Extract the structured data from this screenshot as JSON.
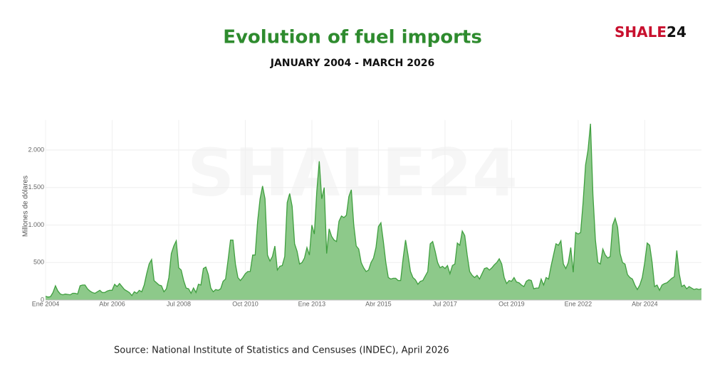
{
  "brand": [
    "SHALE",
    "24"
  ],
  "chart_data": {
    "type": "area",
    "title": "Evolution of fuel imports",
    "subtitle": "JANUARY 2004 - MARCH 2026",
    "watermark": "SHALE24",
    "y_label": "Millones de dólares",
    "source": "Source: National Institute of Statistics and Censuses (INDEC), April 2026",
    "color": "#3f9f3f",
    "fill": "#8dc98a",
    "grid": true,
    "ylim": [
      0,
      2400
    ],
    "yticks": [
      0,
      500,
      {
        "value": 1000,
        "label": "1.000"
      },
      {
        "value": 1500,
        "label": "1.500"
      },
      {
        "value": 2000,
        "label": "2.000"
      }
    ],
    "categories": [
      "Ene 2004",
      null,
      null,
      null,
      null,
      null,
      null,
      null,
      null,
      null,
      null,
      null,
      null,
      null,
      null,
      null,
      null,
      null,
      null,
      null,
      null,
      null,
      null,
      null,
      null,
      null,
      null,
      "Abr 2006",
      null,
      null,
      null,
      null,
      null,
      null,
      null,
      null,
      null,
      null,
      null,
      null,
      null,
      null,
      null,
      null,
      null,
      null,
      null,
      null,
      null,
      null,
      null,
      null,
      null,
      null,
      "Jul 2008",
      null,
      null,
      null,
      null,
      null,
      null,
      null,
      null,
      null,
      null,
      null,
      null,
      null,
      null,
      null,
      null,
      null,
      null,
      null,
      null,
      null,
      null,
      null,
      null,
      null,
      null,
      "Oct 2010",
      null,
      null,
      null,
      null,
      null,
      null,
      null,
      null,
      null,
      null,
      null,
      null,
      null,
      null,
      null,
      null,
      null,
      null,
      null,
      null,
      null,
      null,
      null,
      null,
      null,
      null,
      "Ene 2013",
      null,
      null,
      null,
      null,
      null,
      null,
      null,
      null,
      null,
      null,
      null,
      null,
      null,
      null,
      null,
      null,
      null,
      null,
      null,
      null,
      null,
      null,
      null,
      null,
      null,
      null,
      "Abr 2015",
      null,
      null,
      null,
      null,
      null,
      null,
      null,
      null,
      null,
      null,
      null,
      null,
      null,
      null,
      null,
      null,
      null,
      null,
      null,
      null,
      null,
      null,
      null,
      null,
      null,
      null,
      "Jul 2017",
      null,
      null,
      null,
      null,
      null,
      null,
      null,
      null,
      null,
      null,
      null,
      null,
      null,
      null,
      null,
      null,
      null,
      null,
      null,
      null,
      null,
      null,
      null,
      null,
      null,
      null,
      "Oct 2019",
      null,
      null,
      null,
      null,
      null,
      null,
      null,
      null,
      null,
      null,
      null,
      null,
      null,
      null,
      null,
      null,
      null,
      null,
      null,
      null,
      null,
      null,
      null,
      null,
      null,
      null,
      "Ene 2022",
      null,
      null,
      null,
      null,
      null,
      null,
      null,
      null,
      null,
      null,
      null,
      null,
      null,
      null,
      null,
      null,
      null,
      null,
      null,
      null,
      null,
      null,
      null,
      null,
      null,
      null,
      "Abr 2024",
      null,
      null,
      null,
      null,
      null,
      null,
      null,
      null,
      null,
      null,
      null,
      null,
      null,
      null,
      null,
      null,
      null,
      null,
      null,
      null,
      null,
      null,
      null
    ],
    "values": [
      50,
      40,
      45,
      100,
      190,
      120,
      80,
      70,
      80,
      75,
      70,
      90,
      90,
      80,
      190,
      200,
      200,
      150,
      120,
      100,
      90,
      110,
      130,
      100,
      100,
      120,
      130,
      130,
      210,
      180,
      220,
      180,
      140,
      120,
      100,
      60,
      110,
      90,
      130,
      110,
      200,
      350,
      480,
      540,
      260,
      230,
      200,
      190,
      110,
      150,
      300,
      620,
      720,
      790,
      430,
      400,
      260,
      160,
      150,
      90,
      160,
      100,
      210,
      200,
      420,
      440,
      340,
      160,
      110,
      140,
      130,
      150,
      250,
      280,
      530,
      800,
      800,
      480,
      300,
      260,
      300,
      350,
      380,
      380,
      600,
      600,
      1050,
      1350,
      1520,
      1350,
      600,
      520,
      580,
      720,
      400,
      450,
      460,
      580,
      1300,
      1420,
      1250,
      750,
      650,
      480,
      500,
      560,
      700,
      600,
      1000,
      880,
      1450,
      1850,
      1350,
      1500,
      620,
      950,
      850,
      800,
      780,
      1050,
      1120,
      1100,
      1130,
      1380,
      1470,
      1000,
      720,
      680,
      500,
      430,
      380,
      400,
      500,
      560,
      700,
      980,
      1030,
      780,
      500,
      300,
      280,
      290,
      290,
      260,
      260,
      550,
      800,
      600,
      380,
      300,
      270,
      210,
      250,
      260,
      320,
      380,
      750,
      780,
      650,
      500,
      430,
      450,
      420,
      460,
      350,
      460,
      480,
      760,
      730,
      920,
      860,
      600,
      380,
      330,
      300,
      330,
      280,
      350,
      420,
      430,
      400,
      430,
      470,
      500,
      550,
      480,
      300,
      220,
      260,
      250,
      300,
      240,
      230,
      200,
      180,
      250,
      270,
      260,
      150,
      160,
      160,
      280,
      200,
      300,
      280,
      450,
      600,
      750,
      730,
      790,
      480,
      420,
      500,
      700,
      370,
      900,
      880,
      900,
      1300,
      1800,
      2000,
      2350,
      1400,
      800,
      500,
      480,
      680,
      600,
      560,
      580,
      1000,
      1090,
      970,
      620,
      500,
      480,
      340,
      300,
      280,
      200,
      140,
      200,
      300,
      500,
      760,
      730,
      500,
      180,
      200,
      130,
      200,
      220,
      230,
      260,
      290,
      310,
      660,
      350,
      180,
      200,
      150,
      180,
      160,
      140,
      150,
      140,
      150
    ]
  }
}
